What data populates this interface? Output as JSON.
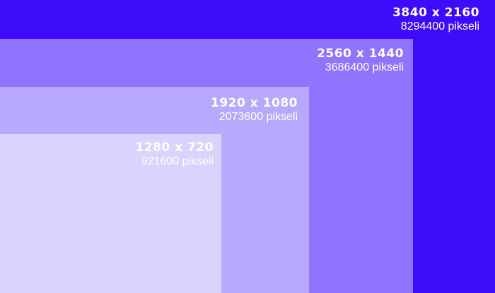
{
  "colors": {
    "block_3840": "#3e0bfb",
    "block_2560": "#8f75fd",
    "block_1920": "#b9a9fe",
    "block_1280": "#dad3fe",
    "text": "#ffffff"
  },
  "resolutions": [
    {
      "dimensions": "3840 x 2160",
      "pixels": "8294400 pikseli"
    },
    {
      "dimensions": "2560 x 1440",
      "pixels": "3686400 pikseli"
    },
    {
      "dimensions": "1920 x 1080",
      "pixels": "2073600 pikseli"
    },
    {
      "dimensions": "1280 x 720",
      "pixels": "921600 pikseli"
    }
  ]
}
